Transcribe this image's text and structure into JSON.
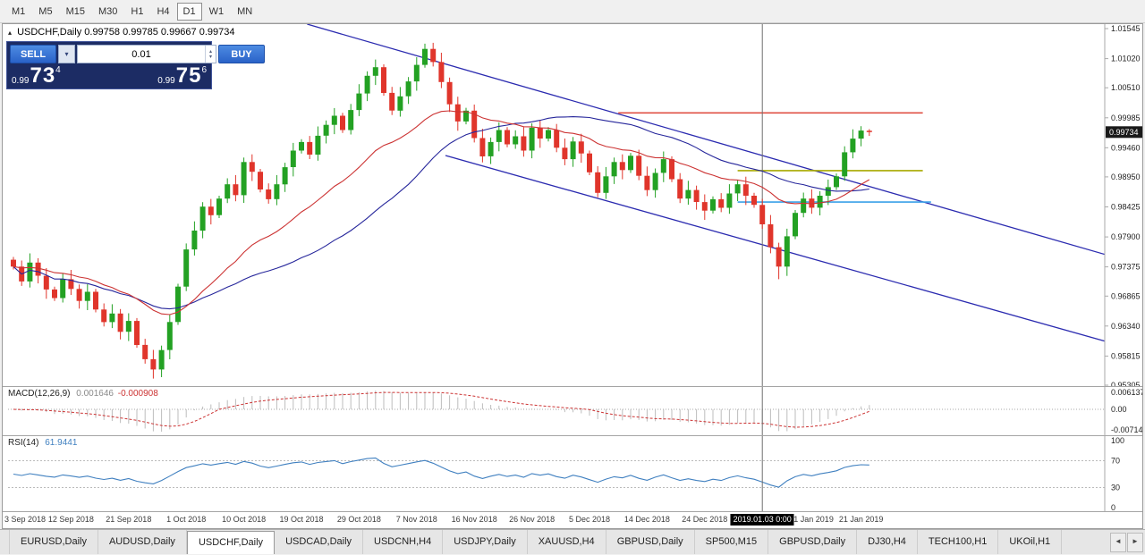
{
  "icons": {
    "collapse": "▴",
    "dropdown": "▾",
    "spin_up": "▴",
    "spin_down": "▾",
    "scroll_left": "◄",
    "scroll_right": "►"
  },
  "toolbar": {
    "timeframes": [
      "M1",
      "M5",
      "M15",
      "M30",
      "H1",
      "H4",
      "D1",
      "W1",
      "MN"
    ],
    "active_index": 6
  },
  "chart": {
    "title_symbol": "USDCHF,Daily",
    "title_ohlc": "0.99758 0.99785 0.99667 0.99734",
    "current_price": "0.99734",
    "trade_panel": {
      "sell_label": "SELL",
      "buy_label": "BUY",
      "volume": "0.01",
      "sell_small": "0.99",
      "sell_big": "73",
      "sell_sup": "4",
      "buy_small": "0.99",
      "buy_big": "75",
      "buy_sup": "6"
    },
    "colors": {
      "bull": "#23A123",
      "bear": "#E0352B",
      "ma_fast": "#CC3333",
      "ma_slow": "#26269B",
      "trend": "#2B2BB0",
      "hline_red": "#E05044",
      "hline_olive": "#A8AA00",
      "hline_blue": "#3AA0E8",
      "macd_hist": "#BDBDBD",
      "macd_signal": "#CC3333",
      "rsi": "#4080C0",
      "tag_bg": "#1A1A1A",
      "vline": "#6E6E6E"
    }
  },
  "chart_data": {
    "type": "candlestick",
    "symbol": "USDCHF",
    "timeframe": "Daily",
    "ohlc_last": {
      "open": 0.99758,
      "high": 0.99785,
      "low": 0.99667,
      "close": 0.99734
    },
    "closes": [
      0.9738,
      0.9712,
      0.9745,
      0.9722,
      0.9698,
      0.9683,
      0.9716,
      0.9699,
      0.9678,
      0.9694,
      0.9663,
      0.9641,
      0.9656,
      0.9624,
      0.9643,
      0.9601,
      0.9576,
      0.9558,
      0.9592,
      0.9641,
      0.9703,
      0.9768,
      0.9801,
      0.9843,
      0.9828,
      0.9857,
      0.9882,
      0.9863,
      0.9921,
      0.9904,
      0.9873,
      0.9856,
      0.9882,
      0.9912,
      0.9941,
      0.9956,
      0.9934,
      0.9967,
      0.9986,
      1.0002,
      0.9977,
      1.0012,
      1.0041,
      1.0072,
      1.0087,
      1.0042,
      1.0011,
      1.0036,
      1.0062,
      1.0091,
      1.0119,
      1.0096,
      1.0061,
      1.0022,
      0.9992,
      1.0011,
      0.9963,
      0.9931,
      0.9956,
      0.9977,
      0.9952,
      0.9966,
      0.9941,
      0.9981,
      0.9962,
      0.9977,
      0.9946,
      0.9926,
      0.9957,
      0.9936,
      0.9903,
      0.9867,
      0.9896,
      0.9921,
      0.9907,
      0.9932,
      0.9897,
      0.9872,
      0.9902,
      0.9926,
      0.9891,
      0.9857,
      0.9872,
      0.9851,
      0.9836,
      0.9856,
      0.9841,
      0.9866,
      0.9882,
      0.9862,
      0.9846,
      0.9812,
      0.9772,
      0.9738,
      0.9791,
      0.9832,
      0.9857,
      0.9841,
      0.9862,
      0.9877,
      0.9896,
      0.9938,
      0.9962,
      0.9976,
      0.99734
    ],
    "wick_overrides": {
      "17": {
        "low": 0.9542
      },
      "50": {
        "high": 1.0128
      },
      "93": {
        "low": 0.9716
      },
      "104": {
        "open": 0.99758,
        "high": 0.99785,
        "low": 0.99667
      }
    },
    "x_labels": [
      {
        "i": 0,
        "t": "3 Sep 2018"
      },
      {
        "i": 7,
        "t": "12 Sep 2018"
      },
      {
        "i": 14,
        "t": "21 Sep 2018"
      },
      {
        "i": 21,
        "t": "1 Oct 2018"
      },
      {
        "i": 28,
        "t": "10 Oct 2018"
      },
      {
        "i": 35,
        "t": "19 Oct 2018"
      },
      {
        "i": 42,
        "t": "29 Oct 2018"
      },
      {
        "i": 49,
        "t": "7 Nov 2018"
      },
      {
        "i": 56,
        "t": "16 Nov 2018"
      },
      {
        "i": 63,
        "t": "26 Nov 2018"
      },
      {
        "i": 70,
        "t": "5 Dec 2018"
      },
      {
        "i": 77,
        "t": "14 Dec 2018"
      },
      {
        "i": 84,
        "t": "24 Dec 2018"
      },
      {
        "i": 97,
        "t": "11 Jan 2019"
      },
      {
        "i": 103,
        "t": "21 Jan 2019"
      }
    ],
    "y_axis": {
      "labels": [
        "1.01545",
        "1.01020",
        "1.00510",
        "0.99985",
        "0.99460",
        "0.98950",
        "0.98425",
        "0.97900",
        "0.97375",
        "0.96865",
        "0.96340",
        "0.95815",
        "0.95305"
      ]
    },
    "overlays": {
      "trendlines": [
        {
          "name": "channel-upper",
          "i1": 35.7,
          "p1": 1.01623,
          "i2": 133.5,
          "p2": 0.97557
        },
        {
          "name": "channel-lower",
          "i1": 52.5,
          "p1": 0.99324,
          "i2": 133.5,
          "p2": 0.9604
        }
      ],
      "hlines": [
        {
          "name": "resistance-line-red",
          "price": 1.0007,
          "i1": 73.5,
          "i2": 110.5,
          "colorKey": "hline_red"
        },
        {
          "name": "support-line-olive",
          "price": 0.9906,
          "i1": 88,
          "i2": 110.5,
          "colorKey": "hline_olive"
        },
        {
          "name": "support-line-blue",
          "price": 0.9851,
          "i1": 88,
          "i2": 111.5,
          "colorKey": "hline_blue"
        }
      ],
      "vline": {
        "i": 91,
        "label": "2019.01.03 0:00"
      }
    },
    "mas": [
      {
        "type": "ema",
        "period": 21,
        "colorKey": "ma_fast"
      },
      {
        "type": "sma",
        "period": 34,
        "colorKey": "ma_slow"
      }
    ],
    "indicators": {
      "macd": {
        "name": "MACD(12,26,9)",
        "value_main": "0.001646",
        "value_signal": "-0.000908",
        "params": [
          12,
          26,
          9
        ],
        "axis_labels": [
          "0.006137",
          "0.00",
          "-0.007142"
        ]
      },
      "rsi": {
        "name": "RSI(14)",
        "value": "61.9441",
        "period": 14,
        "levels": [
          70,
          30
        ],
        "axis_labels": [
          "100",
          "70",
          "30",
          "0"
        ]
      }
    }
  },
  "tabs": {
    "items": [
      {
        "label": "EURUSD,Daily"
      },
      {
        "label": "AUDUSD,Daily"
      },
      {
        "label": "USDCHF,Daily"
      },
      {
        "label": "USDCAD,Daily"
      },
      {
        "label": "USDCNH,H4"
      },
      {
        "label": "USDJPY,Daily"
      },
      {
        "label": "XAUUSD,H4"
      },
      {
        "label": "GBPUSD,Daily"
      },
      {
        "label": "SP500,M15"
      },
      {
        "label": "GBPUSD,Daily"
      },
      {
        "label": "DJ30,H4"
      },
      {
        "label": "TECH100,H1"
      },
      {
        "label": "UKOil,H1"
      }
    ],
    "active_index": 2
  }
}
